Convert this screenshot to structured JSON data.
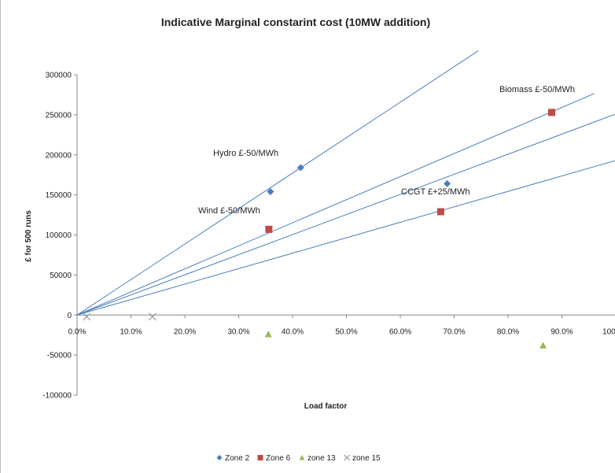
{
  "chart_data": {
    "type": "scatter",
    "title": "Indicative Marginal constarint cost (10MW addition)",
    "xlabel": "Load factor",
    "ylabel": "£ for 500 runs",
    "xlim": [
      0,
      1.0
    ],
    "ylim": [
      -100000,
      300000
    ],
    "x_ticks": [
      "0.0%",
      "10.0%",
      "20.0%",
      "30.0%",
      "40.0%",
      "50.0%",
      "60.0%",
      "70.0%",
      "80.0%",
      "90.0%",
      "100.0%"
    ],
    "y_ticks": [
      "300000",
      "250000",
      "200000",
      "150000",
      "100000",
      "50000",
      "0",
      "-50000",
      "-100000"
    ],
    "legend_position": "bottom",
    "grid": false,
    "series": [
      {
        "name": "Zone 2",
        "marker": "diamond",
        "color": "#4a7ebb",
        "points": [
          [
            0.359,
            154000
          ],
          [
            0.415,
            184000
          ],
          [
            0.687,
            164000
          ]
        ]
      },
      {
        "name": "Zone 6",
        "marker": "square",
        "color": "#be4b48",
        "points": [
          [
            0.356,
            107000
          ],
          [
            0.675,
            129000
          ],
          [
            0.881,
            253000
          ]
        ]
      },
      {
        "name": "zone 13",
        "marker": "triangle",
        "color": "#98b954",
        "points": [
          [
            0.355,
            -24000
          ],
          [
            0.865,
            -38000
          ]
        ]
      },
      {
        "name": "zone 15",
        "marker": "x",
        "color": "#9a9a9a",
        "points": [
          [
            0.018,
            -2000
          ],
          [
            0.14,
            -2000
          ]
        ]
      }
    ],
    "trendlines": [
      {
        "color": "#4a7ebb",
        "slope": 443000,
        "x_range": [
          0,
          0.745
        ]
      },
      {
        "color": "#4a7ebb",
        "slope": 288000,
        "x_range": [
          0,
          0.96
        ]
      },
      {
        "color": "#4a7ebb",
        "slope": 251000,
        "x_range": [
          0,
          1.0
        ]
      },
      {
        "color": "#4a7ebb",
        "slope": 193000,
        "x_range": [
          0,
          1.0
        ]
      }
    ],
    "annotations": [
      {
        "text": "Hydro   £-50/MWh"
      },
      {
        "text": "Wind   £-50/MWh"
      },
      {
        "text": "CCGT £+25/MWh"
      },
      {
        "text": "Biomass £-50/MWh"
      }
    ]
  }
}
